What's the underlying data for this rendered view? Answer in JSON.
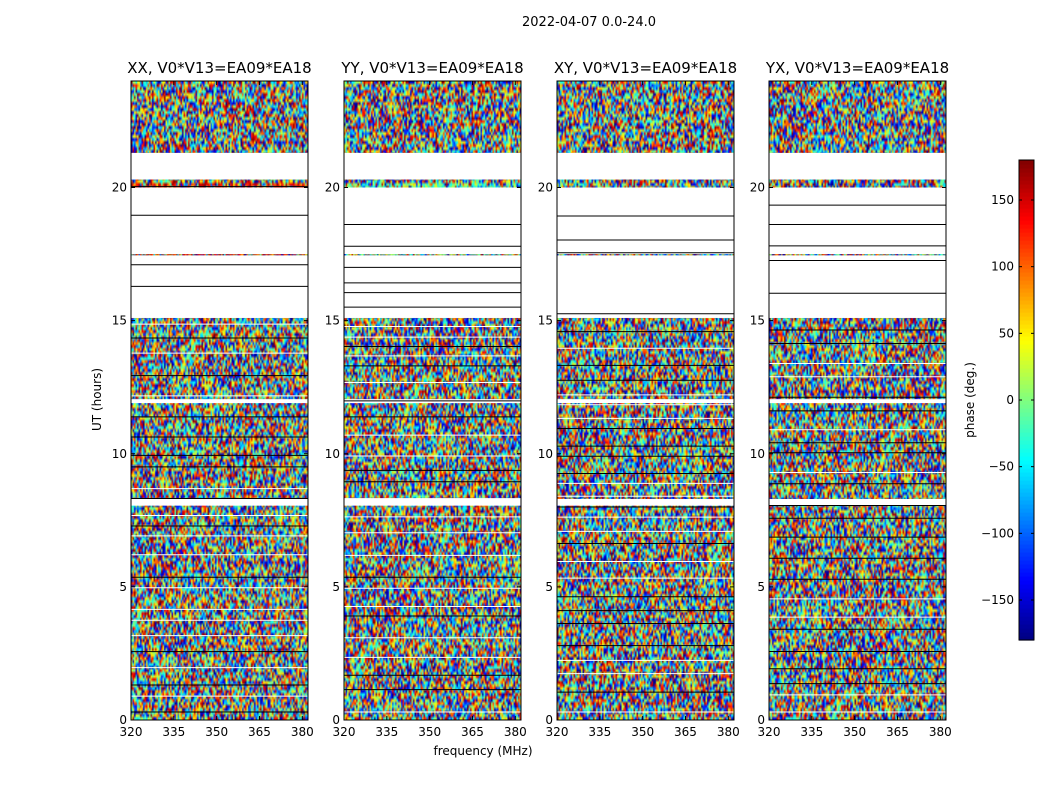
{
  "chart_data": {
    "type": "heatmap",
    "suptitle": "2022-04-07 0.0-24.0",
    "xlabel": "frequency (MHz)",
    "ylabel": "UT (hours)",
    "xlim": [
      320,
      382
    ],
    "ylim": [
      0,
      24
    ],
    "xticks": [
      "320",
      "335",
      "350",
      "365",
      "380"
    ],
    "xtick_values": [
      320,
      335,
      350,
      365,
      380
    ],
    "yticks": [
      "0",
      "5",
      "10",
      "15",
      "20"
    ],
    "ytick_values": [
      0,
      5,
      10,
      15,
      20
    ],
    "panels": [
      {
        "title": "XX, V0*V13=EA09*EA18",
        "bias": "red-coherent-early",
        "show_ylabel": true,
        "show_xlabel": false
      },
      {
        "title": "YY, V0*V13=EA09*EA18",
        "bias": "cyan-coherent-early",
        "show_ylabel": false,
        "show_xlabel": true
      },
      {
        "title": "XY, V0*V13=EA09*EA18",
        "bias": "noise",
        "show_ylabel": false,
        "show_xlabel": false
      },
      {
        "title": "YX, V0*V13=EA09*EA18",
        "bias": "noise",
        "show_ylabel": false,
        "show_xlabel": false
      }
    ],
    "gaps_hours": [
      [
        20.3,
        21.3
      ],
      [
        17.5,
        20.0
      ],
      [
        15.1,
        17.45
      ],
      [
        11.9,
        12.05
      ],
      [
        8.05,
        8.3
      ]
    ],
    "colorbar": {
      "label": "phase (deg.)",
      "range": [
        -180,
        180
      ],
      "ticks": [
        "150",
        "100",
        "50",
        "0",
        "−50",
        "−100",
        "−150"
      ],
      "tick_values": [
        150,
        100,
        50,
        0,
        -50,
        -100,
        -150
      ],
      "colormap": "jet"
    }
  }
}
